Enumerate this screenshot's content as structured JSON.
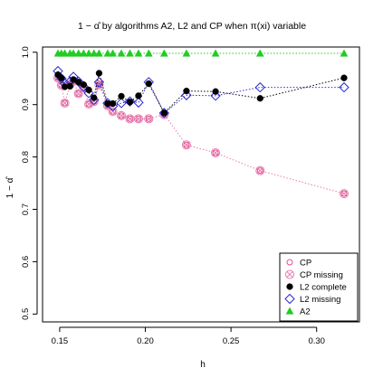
{
  "chart_data": {
    "type": "scatter",
    "title": "1 − α̂ by algorithms A2, L2 and CP when π(xi) variable",
    "xlabel": "h",
    "ylabel": "1 − α̂",
    "xlim": [
      0.14,
      0.325
    ],
    "ylim": [
      0.485,
      1.01
    ],
    "x_ticks": [
      "0.15",
      "0.20",
      "0.25",
      "0.30"
    ],
    "x_tick_values": [
      0.15,
      0.2,
      0.25,
      0.3
    ],
    "y_ticks": [
      "0.5",
      "0.6",
      "0.7",
      "0.8",
      "0.9",
      "1.0"
    ],
    "y_tick_values": [
      0.5,
      0.6,
      0.7,
      0.8,
      0.9,
      1.0
    ],
    "grid": false,
    "legend_position": "bottom-right",
    "colors": {
      "cp": "#e0508c",
      "cp_missing": "#e87ab0",
      "l2_complete": "#000000",
      "l2_missing": "#2a2ad0",
      "a2": "#22cc22"
    },
    "series": [
      {
        "key": "cp",
        "name": "CP",
        "marker": "circle-open",
        "connected": false,
        "x": [
          0.149,
          0.151,
          0.153,
          0.156,
          0.158,
          0.161,
          0.164,
          0.167,
          0.17,
          0.173,
          0.178,
          0.181,
          0.186,
          0.191,
          0.196,
          0.202,
          0.211,
          0.224,
          0.241,
          0.267,
          0.316
        ],
        "y": [
          0.951,
          0.937,
          0.903,
          0.938,
          0.945,
          0.921,
          0.932,
          0.901,
          0.906,
          0.938,
          0.898,
          0.887,
          0.879,
          0.873,
          0.873,
          0.873,
          0.881,
          0.823,
          0.808,
          0.774,
          0.73
        ]
      },
      {
        "key": "cp_missing",
        "name": "CP missing",
        "marker": "circle-cross",
        "connected": true,
        "x": [
          0.149,
          0.151,
          0.153,
          0.156,
          0.158,
          0.161,
          0.164,
          0.167,
          0.17,
          0.173,
          0.178,
          0.181,
          0.186,
          0.191,
          0.196,
          0.202,
          0.211,
          0.224,
          0.241,
          0.267,
          0.316
        ],
        "y": [
          0.951,
          0.937,
          0.903,
          0.938,
          0.945,
          0.921,
          0.932,
          0.901,
          0.906,
          0.938,
          0.898,
          0.887,
          0.879,
          0.873,
          0.873,
          0.873,
          0.881,
          0.823,
          0.808,
          0.774,
          0.73
        ]
      },
      {
        "key": "l2_complete",
        "name": "L2 complete",
        "marker": "dot",
        "connected": true,
        "x": [
          0.149,
          0.151,
          0.153,
          0.156,
          0.158,
          0.161,
          0.164,
          0.167,
          0.17,
          0.173,
          0.178,
          0.181,
          0.186,
          0.191,
          0.196,
          0.202,
          0.211,
          0.224,
          0.241,
          0.267,
          0.316
        ],
        "y": [
          0.957,
          0.951,
          0.934,
          0.935,
          0.948,
          0.943,
          0.938,
          0.928,
          0.913,
          0.96,
          0.902,
          0.902,
          0.916,
          0.905,
          0.917,
          0.94,
          0.884,
          0.926,
          0.925,
          0.912,
          0.951
        ]
      },
      {
        "key": "l2_missing",
        "name": "L2 missing",
        "marker": "diamond-open",
        "connected": true,
        "x": [
          0.149,
          0.151,
          0.153,
          0.156,
          0.158,
          0.161,
          0.164,
          0.167,
          0.17,
          0.173,
          0.178,
          0.181,
          0.186,
          0.191,
          0.196,
          0.202,
          0.211,
          0.224,
          0.241,
          0.267,
          0.316
        ],
        "y": [
          0.964,
          0.95,
          0.941,
          0.944,
          0.953,
          0.944,
          0.934,
          0.922,
          0.909,
          0.943,
          0.903,
          0.897,
          0.903,
          0.906,
          0.904,
          0.943,
          0.884,
          0.918,
          0.917,
          0.933,
          0.933
        ]
      },
      {
        "key": "a2",
        "name": "A2",
        "marker": "triangle",
        "connected": true,
        "x": [
          0.149,
          0.151,
          0.153,
          0.156,
          0.158,
          0.161,
          0.164,
          0.167,
          0.17,
          0.173,
          0.178,
          0.181,
          0.186,
          0.191,
          0.196,
          0.202,
          0.211,
          0.224,
          0.241,
          0.267,
          0.316
        ],
        "y": [
          0.998,
          0.998,
          0.998,
          0.998,
          0.998,
          0.998,
          0.998,
          0.998,
          0.998,
          0.998,
          0.998,
          0.998,
          0.998,
          0.998,
          0.998,
          0.998,
          0.998,
          0.998,
          0.998,
          0.998,
          0.998
        ]
      }
    ]
  }
}
